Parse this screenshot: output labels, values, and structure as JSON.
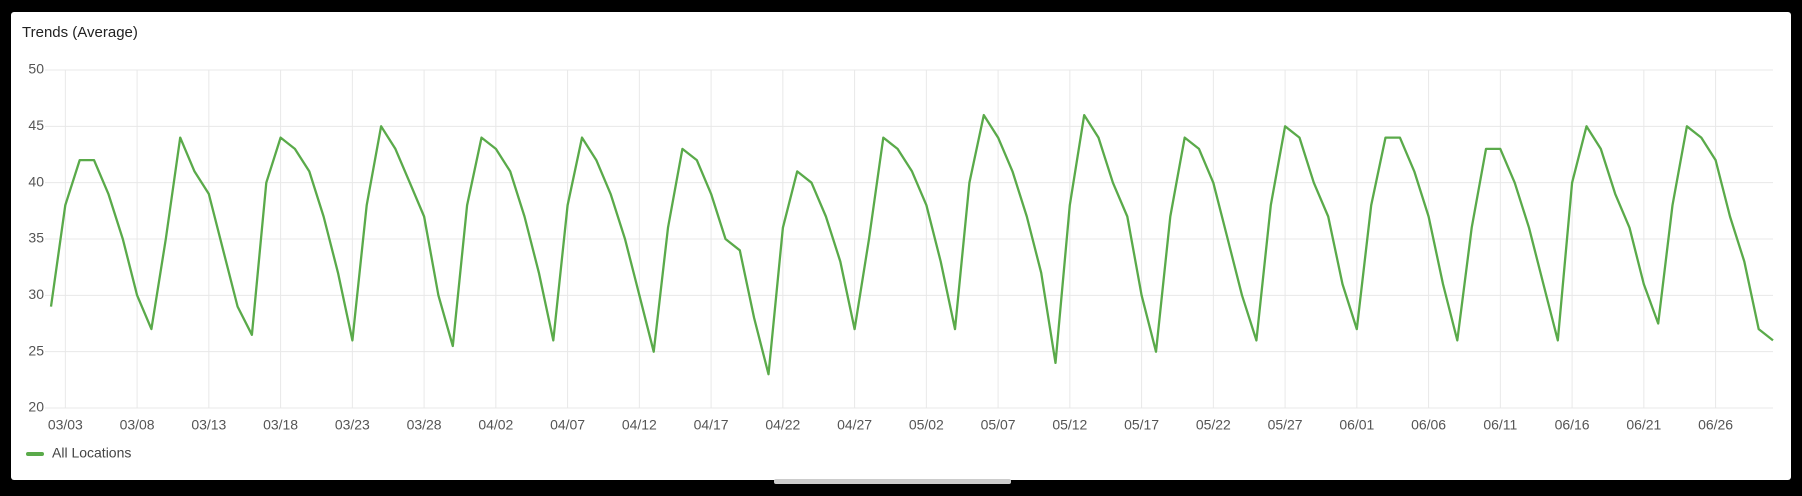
{
  "chart_data": {
    "type": "line",
    "title": "Trends (Average)",
    "categories": [
      null,
      "03/03",
      null,
      null,
      null,
      null,
      "03/08",
      null,
      null,
      null,
      null,
      "03/13",
      null,
      null,
      null,
      null,
      "03/18",
      null,
      null,
      null,
      null,
      "03/23",
      null,
      null,
      null,
      null,
      "03/28",
      null,
      null,
      null,
      null,
      "04/02",
      null,
      null,
      null,
      null,
      "04/07",
      null,
      null,
      null,
      null,
      "04/12",
      null,
      null,
      null,
      null,
      "04/17",
      null,
      null,
      null,
      null,
      "04/22",
      null,
      null,
      null,
      null,
      "04/27",
      null,
      null,
      null,
      null,
      "05/02",
      null,
      null,
      null,
      null,
      "05/07",
      null,
      null,
      null,
      null,
      "05/12",
      null,
      null,
      null,
      null,
      "05/17",
      null,
      null,
      null,
      null,
      "05/22",
      null,
      null,
      null,
      null,
      "05/27",
      null,
      null,
      null,
      null,
      "06/01",
      null,
      null,
      null,
      null,
      "06/06",
      null,
      null,
      null,
      null,
      "06/11",
      null,
      null,
      null,
      null,
      "06/16",
      null,
      null,
      null,
      null,
      "06/21",
      null,
      null,
      null,
      null,
      "06/26",
      null,
      null,
      null,
      null
    ],
    "series": [
      {
        "name": "All Locations",
        "color": "#5aaa4a",
        "values": [
          29,
          38,
          42,
          42,
          39,
          35,
          30,
          27,
          35,
          44,
          41,
          39,
          34,
          29,
          26.5,
          40,
          44,
          43,
          41,
          37,
          32,
          26,
          38,
          45,
          43,
          40,
          37,
          30,
          25.5,
          38,
          44,
          43,
          41,
          37,
          32,
          26,
          38,
          44,
          42,
          39,
          35,
          30,
          25,
          36,
          43,
          42,
          39,
          35,
          34,
          28,
          23,
          36,
          41,
          40,
          37,
          33,
          27,
          35,
          44,
          43,
          41,
          38,
          33,
          27,
          40,
          46,
          44,
          41,
          37,
          32,
          24,
          38,
          46,
          44,
          40,
          37,
          30,
          25,
          37,
          44,
          43,
          40,
          35,
          30,
          26,
          38,
          45,
          44,
          40,
          37,
          31,
          27,
          38,
          44,
          44,
          41,
          37,
          31,
          26,
          36,
          43,
          43,
          40,
          36,
          31,
          26,
          40,
          45,
          43,
          39,
          36,
          31,
          27.5,
          38,
          45,
          44,
          42,
          37,
          33,
          27,
          26
        ]
      }
    ],
    "ylim": [
      20,
      50
    ],
    "yticks": [
      20,
      25,
      30,
      35,
      40,
      45,
      50
    ],
    "grid": true
  }
}
